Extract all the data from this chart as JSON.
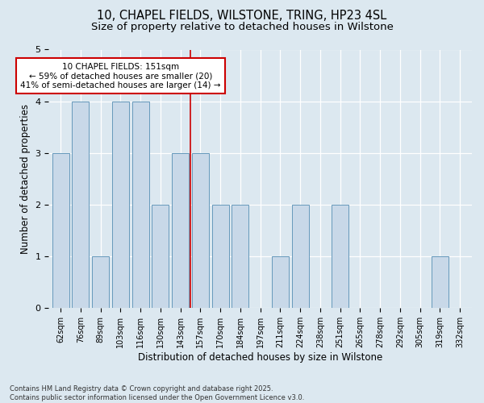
{
  "title_line1": "10, CHAPEL FIELDS, WILSTONE, TRING, HP23 4SL",
  "title_line2": "Size of property relative to detached houses in Wilstone",
  "xlabel": "Distribution of detached houses by size in Wilstone",
  "ylabel": "Number of detached properties",
  "categories": [
    "62sqm",
    "76sqm",
    "89sqm",
    "103sqm",
    "116sqm",
    "130sqm",
    "143sqm",
    "157sqm",
    "170sqm",
    "184sqm",
    "197sqm",
    "211sqm",
    "224sqm",
    "238sqm",
    "251sqm",
    "265sqm",
    "278sqm",
    "292sqm",
    "305sqm",
    "319sqm",
    "332sqm"
  ],
  "values": [
    3,
    4,
    1,
    4,
    4,
    2,
    3,
    3,
    2,
    2,
    0,
    1,
    2,
    0,
    2,
    0,
    0,
    0,
    0,
    1,
    0
  ],
  "bar_color": "#c8d8e8",
  "bar_edge_color": "#6699bb",
  "reference_line_x": 6.5,
  "annotation_text": "10 CHAPEL FIELDS: 151sqm\n← 59% of detached houses are smaller (20)\n41% of semi-detached houses are larger (14) →",
  "annotation_box_facecolor": "#ffffff",
  "annotation_box_edgecolor": "#cc0000",
  "reference_line_color": "#cc0000",
  "ylim": [
    0,
    5
  ],
  "yticks": [
    0,
    1,
    2,
    3,
    4,
    5
  ],
  "grid_color": "#c8d8e8",
  "background_color": "#dce8f0",
  "plot_bg_color": "#dce8f0",
  "footer_text": "Contains HM Land Registry data © Crown copyright and database right 2025.\nContains public sector information licensed under the Open Government Licence v3.0.",
  "title_fontsize": 10.5,
  "subtitle_fontsize": 9.5,
  "xlabel_fontsize": 8.5,
  "ylabel_fontsize": 8.5,
  "tick_fontsize": 7,
  "annotation_fontsize": 7.5,
  "footer_fontsize": 6
}
